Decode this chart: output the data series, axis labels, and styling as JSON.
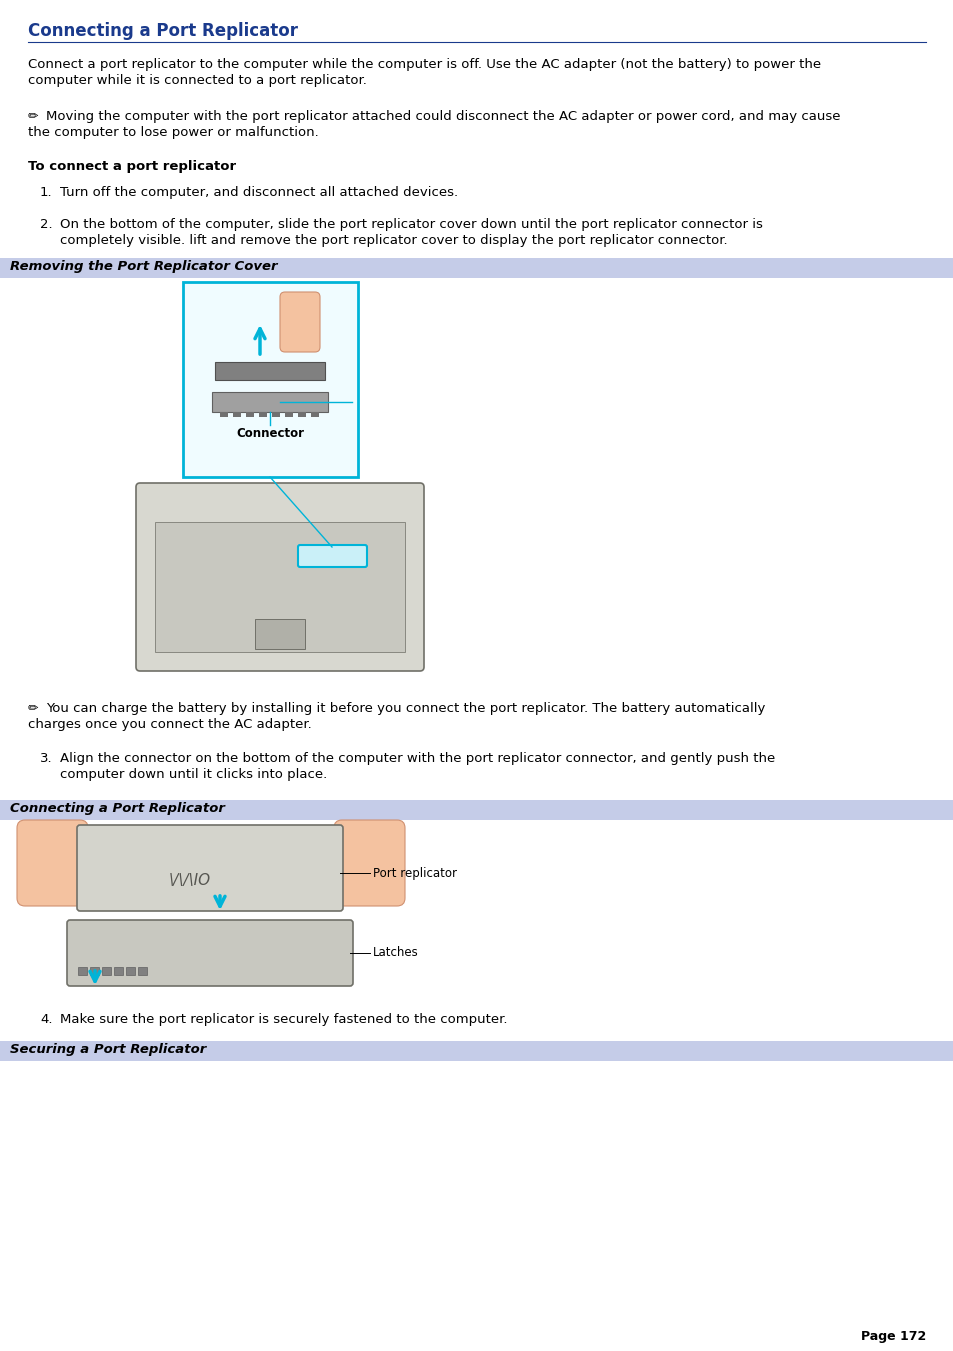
{
  "title": "Connecting a Port Replicator",
  "title_color": "#1a3a8c",
  "title_underline_color": "#1a3a8c",
  "bg_color": "#ffffff",
  "body_text_color": "#000000",
  "page_width": 9.54,
  "page_height": 13.51,
  "dpi": 100,
  "para1_line1": "Connect a port replicator to the computer while the computer is off. Use the AC adapter (not the battery) to power the",
  "para1_line2": "computer while it is connected to a port replicator.",
  "note1_line1": "Moving the computer with the port replicator attached could disconnect the AC adapter or power cord, and may cause",
  "note1_line2": "the computer to lose power or malfunction.",
  "bold_heading": "To connect a port replicator",
  "step1": "Turn off the computer, and disconnect all attached devices.",
  "step2_line1": "On the bottom of the computer, slide the port replicator cover down until the port replicator connector is",
  "step2_line2": "completely visible. lift and remove the port replicator cover to display the port replicator connector.",
  "section_bar1_text": "Removing the Port Replicator Cover",
  "section_bar2_text": "Connecting a Port Replicator",
  "section_bar3_text": "Securing a Port Replicator",
  "section_bar_bg": "#c5cce8",
  "section_bar_text_color": "#000000",
  "note2_line1": "You can charge the battery by installing it before you connect the port replicator. The battery automatically",
  "note2_line2": "charges once you connect the AC adapter.",
  "step3_line1": "Align the connector on the bottom of the computer with the port replicator connector, and gently push the",
  "step3_line2": "computer down until it clicks into place.",
  "step4": "Make sure the port replicator is securely fastened to the computer.",
  "page_number": "Page 172",
  "connector_label": "Connector",
  "port_replicator_label": "Port replicator",
  "latches_label": "Latches",
  "cyan_color": "#00b4d8",
  "cyan_fill": "#caf0f8",
  "gray_laptop": "#c8c8c0",
  "gray_dark": "#888880",
  "skin_color": "#f4c2a0",
  "font_size_title": 12,
  "font_size_body": 9.5,
  "font_size_section_bar": 9.5,
  "font_size_page": 9,
  "font_size_label": 8.5
}
